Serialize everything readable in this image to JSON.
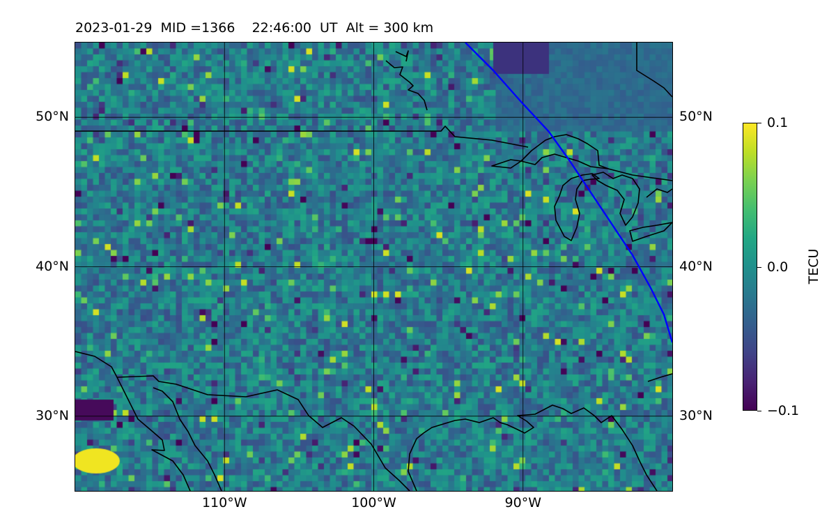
{
  "title": "2023-01-29  MID =1366    22:46:00  UT  Alt = 300 km",
  "map": {
    "lon_range": [
      -120,
      -80
    ],
    "lat_range": [
      25,
      55
    ],
    "lat_ticks": [
      {
        "value": 50,
        "label": "50°N"
      },
      {
        "value": 40,
        "label": "40°N"
      },
      {
        "value": 30,
        "label": "30°N"
      }
    ],
    "lon_ticks": [
      {
        "value": -110,
        "label": "110°W"
      },
      {
        "value": -100,
        "label": "100°W"
      },
      {
        "value": -90,
        "label": "90°W"
      }
    ],
    "terminator_color": "#0000ff",
    "coastline_color": "#000000",
    "gridline_color": "#000000",
    "colormap": "viridis"
  },
  "colorbar": {
    "label": "TECU",
    "min": -0.1,
    "max": 0.1,
    "ticks": [
      {
        "value": 0.1,
        "label": "0.1"
      },
      {
        "value": 0.0,
        "label": "0.0"
      },
      {
        "value": -0.1,
        "label": "−0.1"
      }
    ]
  }
}
